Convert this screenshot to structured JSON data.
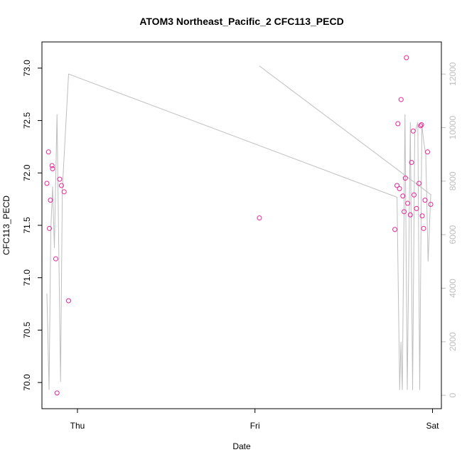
{
  "chart_data": {
    "type": "scatter",
    "title": "ATOM3 Northeast_Pacific_2 CFC113_PECD",
    "xlabel": "Date",
    "ylabel": "CFC113_PECD",
    "x_ticks": [
      {
        "label": "Thu",
        "value": 0
      },
      {
        "label": "Fri",
        "value": 1
      },
      {
        "label": "Sat",
        "value": 2
      }
    ],
    "xlim": [
      -0.2,
      2.05
    ],
    "y_ticks": [
      "70.0",
      "70.5",
      "71.0",
      "71.5",
      "72.0",
      "72.5",
      "73.0"
    ],
    "ylim": [
      69.75,
      73.25
    ],
    "y2_ticks": [
      "0",
      "2000",
      "4000",
      "6000",
      "8000",
      "10000",
      "12000"
    ],
    "y2lim": [
      -500,
      13200
    ],
    "colors": {
      "points": "#e8249a",
      "line": "#bebebe",
      "axis": "#000000",
      "right_axis": "#bebebe"
    },
    "series": [
      {
        "type": "scatter",
        "axis": "left",
        "points": [
          [
            -0.172,
            71.9
          ],
          [
            -0.163,
            72.2
          ],
          [
            -0.158,
            71.47
          ],
          [
            -0.152,
            71.74
          ],
          [
            -0.143,
            72.07
          ],
          [
            -0.14,
            72.04
          ],
          [
            -0.122,
            71.18
          ],
          [
            -0.115,
            69.9
          ],
          [
            -0.1,
            71.94
          ],
          [
            -0.09,
            71.88
          ],
          [
            -0.075,
            71.82
          ],
          [
            -0.05,
            70.78
          ],
          [
            1.025,
            71.57
          ],
          [
            1.788,
            71.46
          ],
          [
            1.8,
            71.88
          ],
          [
            1.805,
            72.47
          ],
          [
            1.814,
            71.85
          ],
          [
            1.823,
            72.7
          ],
          [
            1.833,
            71.78
          ],
          [
            1.84,
            71.63
          ],
          [
            1.847,
            71.95
          ],
          [
            1.853,
            73.1
          ],
          [
            1.86,
            71.71
          ],
          [
            1.875,
            71.6
          ],
          [
            1.882,
            72.1
          ],
          [
            1.891,
            72.4
          ],
          [
            1.896,
            71.79
          ],
          [
            1.91,
            71.66
          ],
          [
            1.924,
            71.9
          ],
          [
            1.933,
            72.45
          ],
          [
            1.938,
            72.46
          ],
          [
            1.942,
            71.59
          ],
          [
            1.95,
            71.47
          ],
          [
            1.958,
            71.74
          ],
          [
            1.972,
            72.2
          ],
          [
            1.99,
            71.7
          ]
        ]
      },
      {
        "type": "line",
        "axis": "right",
        "points": [
          [
            -0.172,
            3800
          ],
          [
            -0.16,
            200
          ],
          [
            -0.15,
            6200
          ],
          [
            -0.14,
            7800
          ],
          [
            -0.13,
            5500
          ],
          [
            -0.115,
            10500
          ],
          [
            -0.095,
            500
          ],
          [
            -0.085,
            7700
          ],
          [
            -0.05,
            12000
          ],
          [
            1.8,
            7400
          ],
          [
            1.815,
            200
          ],
          [
            1.822,
            2000
          ],
          [
            1.83,
            200
          ],
          [
            1.845,
            10500
          ],
          [
            1.858,
            200
          ],
          [
            1.875,
            10200
          ],
          [
            1.888,
            200
          ],
          [
            1.9,
            9800
          ],
          [
            1.917,
            10200
          ],
          [
            1.928,
            200
          ],
          [
            1.94,
            10100
          ],
          [
            1.952,
            9400
          ],
          [
            1.962,
            9000
          ],
          [
            1.975,
            5000
          ],
          [
            1.99,
            7500
          ],
          [
            1.025,
            12300
          ]
        ]
      }
    ]
  }
}
